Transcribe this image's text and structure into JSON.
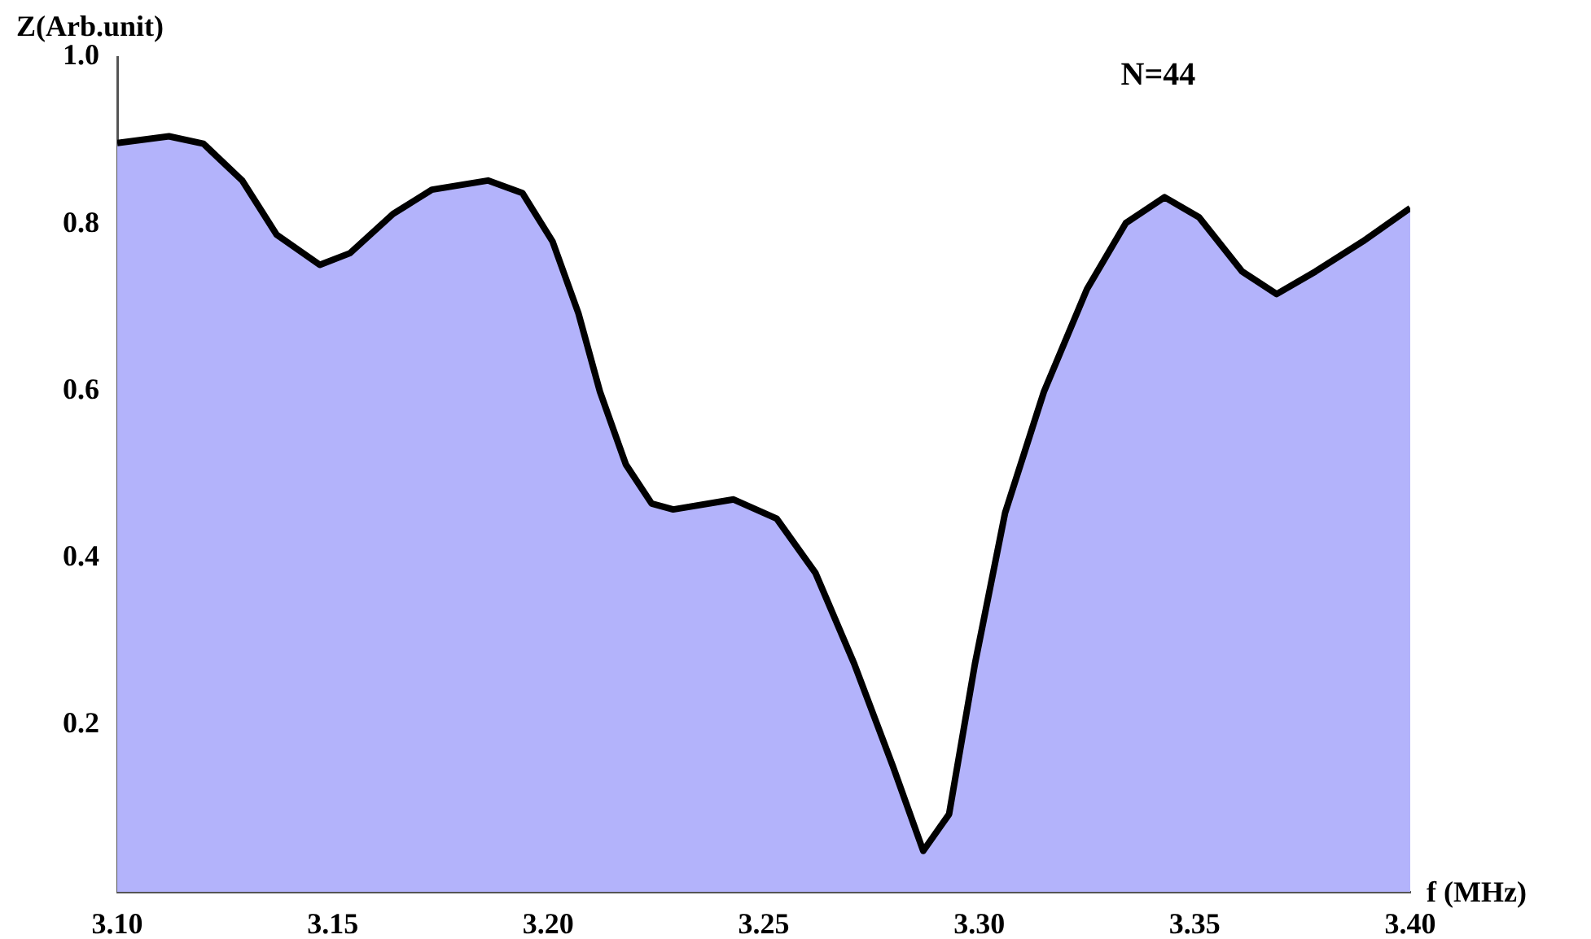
{
  "chart_data": {
    "type": "area",
    "xlabel": "f (MHz)",
    "ylabel": "Z(Arb.unit)",
    "annotations": [
      "N=44"
    ],
    "x": [
      3.1,
      3.112,
      3.12,
      3.129,
      3.137,
      3.147,
      3.154,
      3.164,
      3.173,
      3.186,
      3.194,
      3.201,
      3.207,
      3.212,
      3.218,
      3.224,
      3.229,
      3.243,
      3.253,
      3.262,
      3.271,
      3.28,
      3.287,
      3.293,
      3.299,
      3.306,
      3.315,
      3.325,
      3.334,
      3.343,
      3.351,
      3.361,
      3.369,
      3.378,
      3.389,
      3.4
    ],
    "series": [
      {
        "color": "#b3b3fb",
        "values": [
          0.897,
          0.905,
          0.896,
          0.852,
          0.787,
          0.751,
          0.765,
          0.812,
          0.841,
          0.852,
          0.837,
          0.779,
          0.693,
          0.599,
          0.512,
          0.465,
          0.458,
          0.47,
          0.447,
          0.382,
          0.273,
          0.15,
          0.049,
          0.093,
          0.273,
          0.454,
          0.599,
          0.722,
          0.801,
          0.832,
          0.808,
          0.743,
          0.716,
          0.743,
          0.779,
          0.819
        ]
      }
    ],
    "xlim": [
      3.1,
      3.4
    ],
    "xticks": [
      {
        "value": 3.1,
        "label": "3.10"
      },
      {
        "value": 3.15,
        "label": "3.15"
      },
      {
        "value": 3.2,
        "label": "3.20"
      },
      {
        "value": 3.25,
        "label": "3.25"
      },
      {
        "value": 3.3,
        "label": "3.30"
      },
      {
        "value": 3.35,
        "label": "3.35"
      },
      {
        "value": 3.4,
        "label": "3.40"
      }
    ],
    "ylim": [
      0,
      1.0
    ],
    "yticks": [
      0.2,
      0.4,
      0.6,
      0.8,
      {
        "value": 1.0,
        "label": "1.0"
      }
    ]
  }
}
